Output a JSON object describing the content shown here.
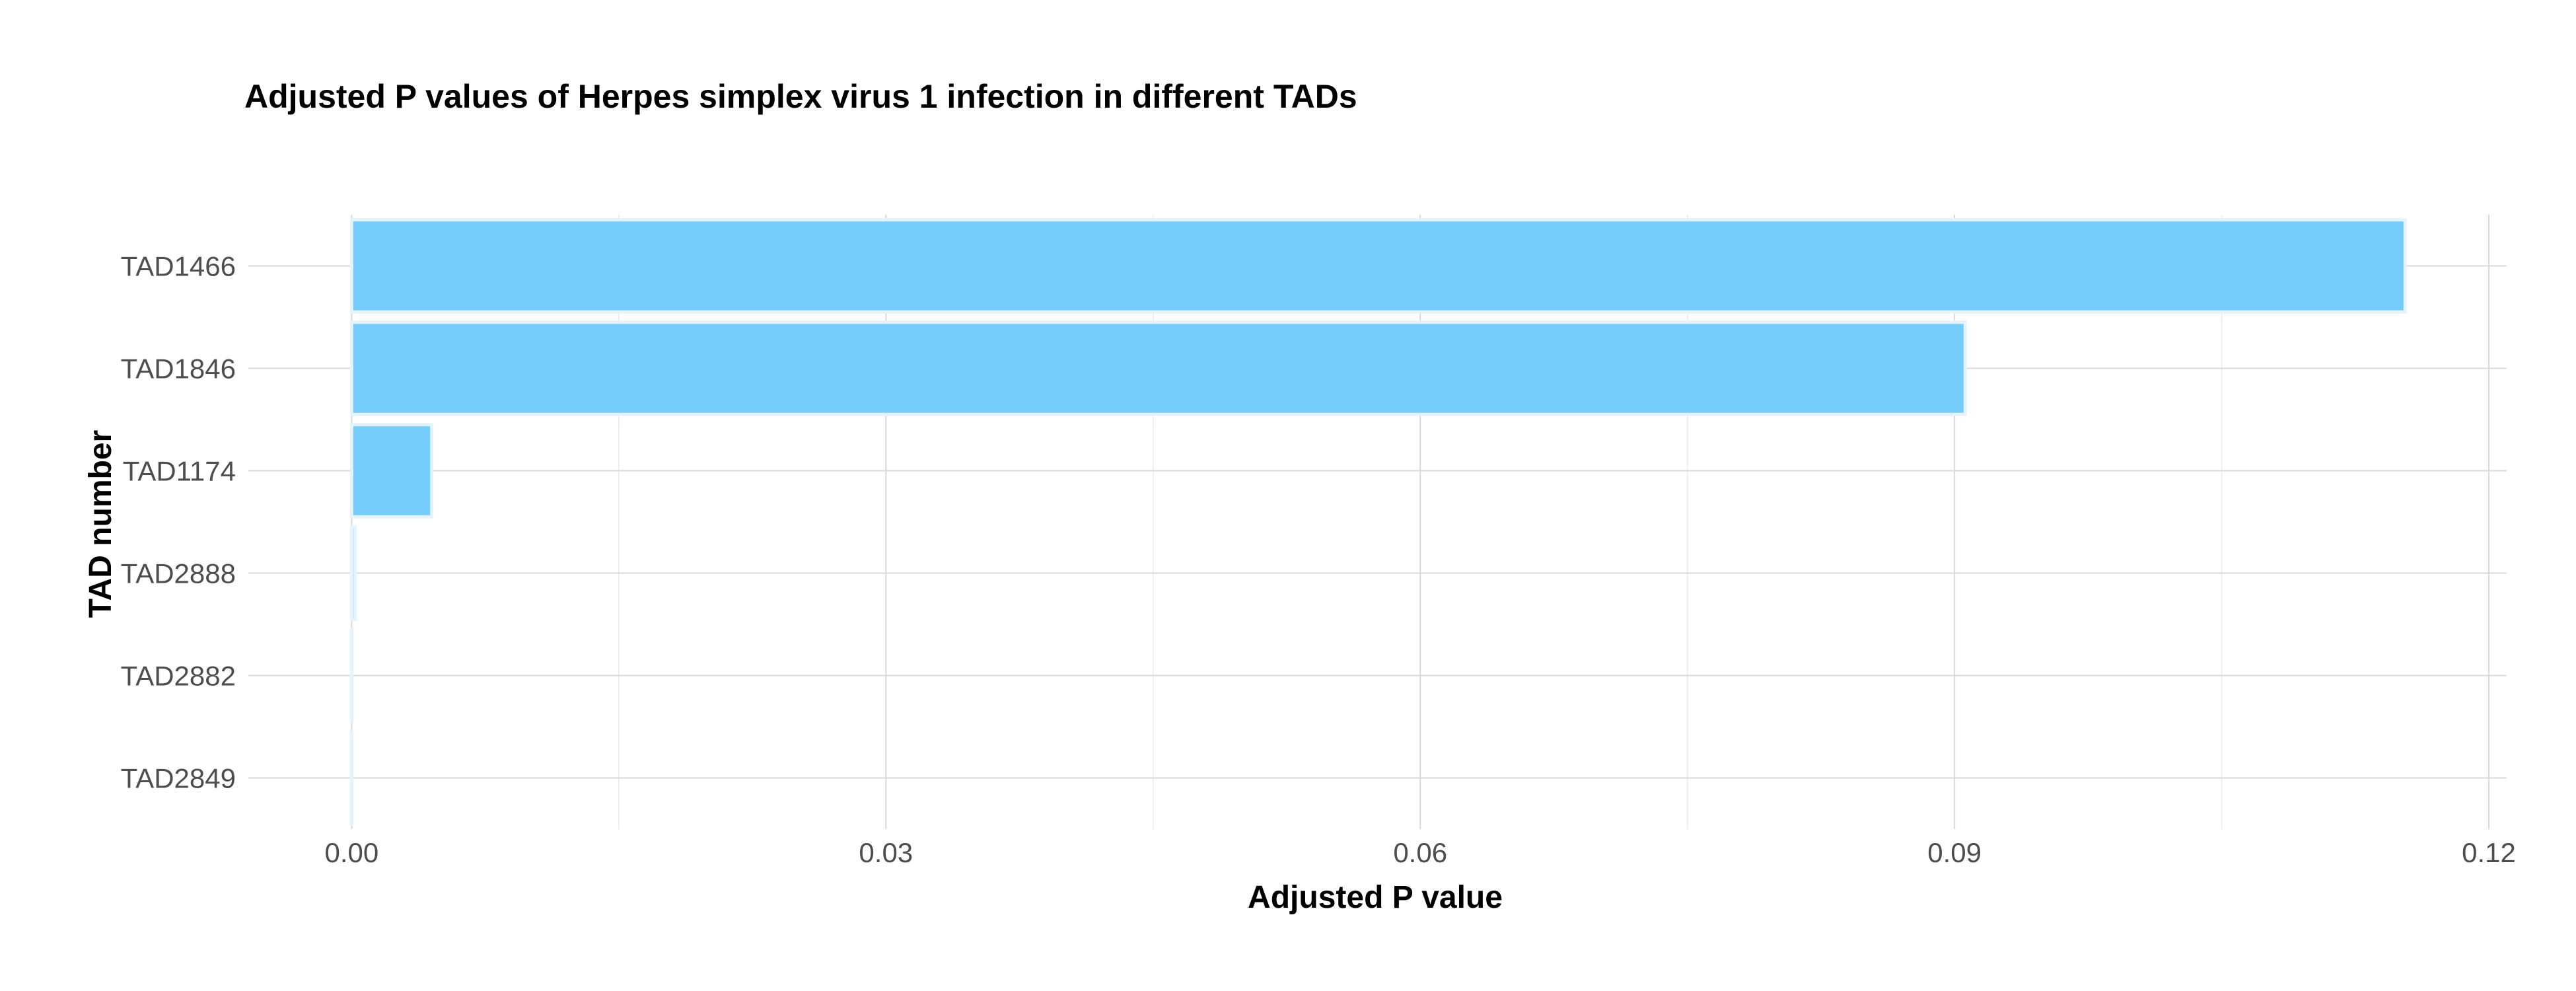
{
  "chart_data": {
    "type": "bar",
    "orientation": "horizontal",
    "title": "Adjusted P values of Herpes simplex virus 1 infection in different TADs",
    "xlabel": "Adjusted P value",
    "ylabel": "TAD number",
    "categories": [
      "TAD1466",
      "TAD1846",
      "TAD1174",
      "TAD2888",
      "TAD2882",
      "TAD2849"
    ],
    "values": [
      0.1153,
      0.0906,
      0.0045,
      0.0002,
      1e-05,
      1e-06
    ],
    "xlim": [
      -0.0058,
      0.121
    ],
    "x_ticks": [
      0.0,
      0.03,
      0.06,
      0.09,
      0.12
    ],
    "x_tick_labels": [
      "0.00",
      "0.03",
      "0.06",
      "0.09",
      "0.12"
    ],
    "grid": true,
    "legend": "none",
    "colors": {
      "bar_fill": "#74cdfb",
      "bar_outline": "#e4f3fc"
    }
  }
}
